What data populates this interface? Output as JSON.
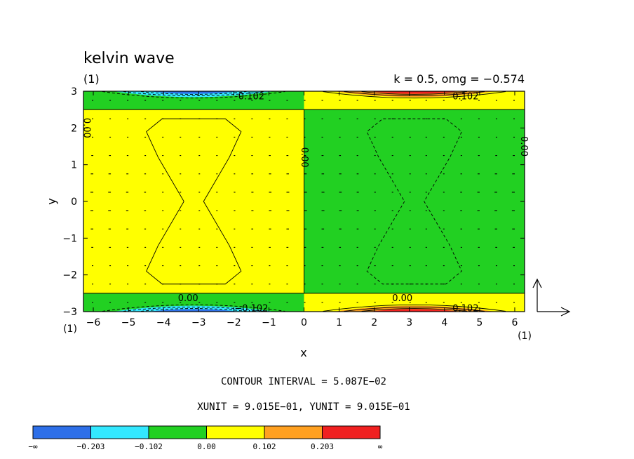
{
  "chart_data": {
    "type": "contour",
    "title": "kelvin wave",
    "panel_label": "(1)",
    "params_text": "k = 0.5, omg = −0.574",
    "xlabel": "x",
    "ylabel": "y",
    "x_unit_label": "(1)",
    "y_unit_label": "(1)",
    "vector_unit_label": "(1)",
    "xlim": [
      -6.28,
      6.28
    ],
    "ylim": [
      -3,
      3
    ],
    "x_ticks": [
      -6,
      -5,
      -4,
      -3,
      -2,
      -1,
      0,
      1,
      2,
      3,
      4,
      5,
      6
    ],
    "x_tick_labels": [
      "−6",
      "−5",
      "−4",
      "−3",
      "−2",
      "−1",
      "0",
      "1",
      "2",
      "3",
      "4",
      "5",
      "6"
    ],
    "y_ticks": [
      -3,
      -2,
      -1,
      0,
      1,
      2,
      3
    ],
    "y_tick_labels": [
      "−3",
      "−2",
      "−1",
      "0",
      "1",
      "2",
      "3"
    ],
    "contour_interval_text": "CONTOUR INTERVAL = 5.087E−02",
    "units_text": "XUNIT = 9.015E−01, YUNIT = 9.015E−01",
    "contour_labels": [
      {
        "text": "0.102",
        "x": -1.5,
        "y": 2.85
      },
      {
        "text": "0.102",
        "x": 4.6,
        "y": 2.85
      },
      {
        "text": "0.00",
        "x": -3.3,
        "y": -2.65
      },
      {
        "text": "0.00",
        "x": 2.8,
        "y": -2.65
      },
      {
        "text": "−0.102",
        "x": -1.5,
        "y": -2.92
      },
      {
        "text": "0.102",
        "x": 4.6,
        "y": -2.92
      },
      {
        "text": "0.00",
        "x": -6.2,
        "y": 2.0,
        "rotated": true
      },
      {
        "text": "0.00",
        "x": 0.0,
        "y": 1.2,
        "rotated": true
      },
      {
        "text": "0.00",
        "x": 6.25,
        "y": 1.5,
        "rotated": true
      }
    ],
    "colorbar": {
      "colors": [
        "#2e6fe8",
        "#33e8ff",
        "#22d022",
        "#ffff00",
        "#ffa020",
        "#f02020"
      ],
      "labels": [
        "−∞",
        "−0.203",
        "−0.102",
        "0.00",
        "0.102",
        "0.203",
        "∞"
      ]
    },
    "colors": {
      "band_neg": "#22d022",
      "band_pos": "#ffff00",
      "edge_neg_1": "#33e8ff",
      "edge_neg_2": "#2e6fe8",
      "edge_pos_1": "#ffa020",
      "edge_pos_2": "#f02020"
    }
  }
}
